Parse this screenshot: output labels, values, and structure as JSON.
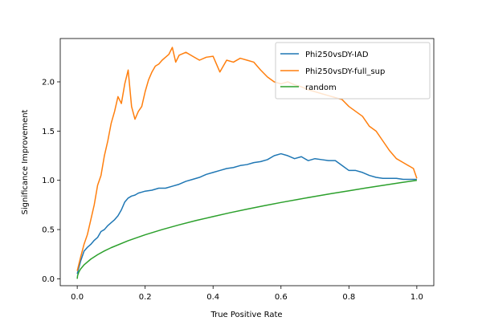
{
  "chart_data": {
    "type": "line",
    "title": "",
    "xlabel": "True Positive Rate",
    "ylabel": "Significance Improvement",
    "xlim": [
      -0.05,
      1.05
    ],
    "ylim": [
      -0.07,
      2.44
    ],
    "xticks": [
      0.0,
      0.2,
      0.4,
      0.6,
      0.8,
      1.0
    ],
    "xtick_labels": [
      "0.0",
      "0.2",
      "0.4",
      "0.6",
      "0.8",
      "1.0"
    ],
    "yticks": [
      0.0,
      0.5,
      1.0,
      1.5,
      2.0
    ],
    "ytick_labels": [
      "0.0",
      "0.5",
      "1.0",
      "1.5",
      "2.0"
    ],
    "grid": false,
    "legend_position": "top-right",
    "series": [
      {
        "name": "Phi250vsDY-IAD",
        "color": "#1f77b4",
        "points": [
          [
            0.0,
            0.05
          ],
          [
            0.01,
            0.18
          ],
          [
            0.02,
            0.28
          ],
          [
            0.03,
            0.32
          ],
          [
            0.04,
            0.35
          ],
          [
            0.05,
            0.39
          ],
          [
            0.06,
            0.42
          ],
          [
            0.07,
            0.48
          ],
          [
            0.08,
            0.5
          ],
          [
            0.09,
            0.54
          ],
          [
            0.1,
            0.57
          ],
          [
            0.11,
            0.6
          ],
          [
            0.12,
            0.64
          ],
          [
            0.13,
            0.7
          ],
          [
            0.14,
            0.78
          ],
          [
            0.15,
            0.82
          ],
          [
            0.16,
            0.84
          ],
          [
            0.17,
            0.85
          ],
          [
            0.18,
            0.87
          ],
          [
            0.19,
            0.88
          ],
          [
            0.2,
            0.89
          ],
          [
            0.22,
            0.9
          ],
          [
            0.24,
            0.92
          ],
          [
            0.26,
            0.92
          ],
          [
            0.28,
            0.94
          ],
          [
            0.3,
            0.96
          ],
          [
            0.32,
            0.99
          ],
          [
            0.34,
            1.01
          ],
          [
            0.36,
            1.03
          ],
          [
            0.38,
            1.06
          ],
          [
            0.4,
            1.08
          ],
          [
            0.42,
            1.1
          ],
          [
            0.44,
            1.12
          ],
          [
            0.46,
            1.13
          ],
          [
            0.48,
            1.15
          ],
          [
            0.5,
            1.16
          ],
          [
            0.52,
            1.18
          ],
          [
            0.54,
            1.19
          ],
          [
            0.56,
            1.21
          ],
          [
            0.58,
            1.25
          ],
          [
            0.6,
            1.27
          ],
          [
            0.62,
            1.25
          ],
          [
            0.64,
            1.22
          ],
          [
            0.66,
            1.24
          ],
          [
            0.68,
            1.2
          ],
          [
            0.7,
            1.22
          ],
          [
            0.72,
            1.21
          ],
          [
            0.74,
            1.2
          ],
          [
            0.76,
            1.2
          ],
          [
            0.78,
            1.15
          ],
          [
            0.8,
            1.1
          ],
          [
            0.82,
            1.1
          ],
          [
            0.84,
            1.08
          ],
          [
            0.86,
            1.05
          ],
          [
            0.88,
            1.03
          ],
          [
            0.9,
            1.02
          ],
          [
            0.92,
            1.02
          ],
          [
            0.94,
            1.02
          ],
          [
            0.96,
            1.01
          ],
          [
            0.98,
            1.01
          ],
          [
            1.0,
            1.01
          ]
        ]
      },
      {
        "name": "Phi250vsDY-full_sup",
        "color": "#ff7f0e",
        "points": [
          [
            0.0,
            0.08
          ],
          [
            0.01,
            0.22
          ],
          [
            0.02,
            0.35
          ],
          [
            0.03,
            0.45
          ],
          [
            0.04,
            0.6
          ],
          [
            0.05,
            0.75
          ],
          [
            0.06,
            0.95
          ],
          [
            0.07,
            1.05
          ],
          [
            0.08,
            1.25
          ],
          [
            0.09,
            1.4
          ],
          [
            0.1,
            1.58
          ],
          [
            0.11,
            1.7
          ],
          [
            0.12,
            1.85
          ],
          [
            0.13,
            1.78
          ],
          [
            0.14,
            1.98
          ],
          [
            0.15,
            2.12
          ],
          [
            0.16,
            1.75
          ],
          [
            0.17,
            1.62
          ],
          [
            0.18,
            1.7
          ],
          [
            0.19,
            1.75
          ],
          [
            0.2,
            1.9
          ],
          [
            0.21,
            2.02
          ],
          [
            0.22,
            2.1
          ],
          [
            0.23,
            2.16
          ],
          [
            0.24,
            2.18
          ],
          [
            0.25,
            2.22
          ],
          [
            0.26,
            2.25
          ],
          [
            0.27,
            2.28
          ],
          [
            0.28,
            2.35
          ],
          [
            0.29,
            2.2
          ],
          [
            0.3,
            2.27
          ],
          [
            0.32,
            2.3
          ],
          [
            0.34,
            2.26
          ],
          [
            0.36,
            2.22
          ],
          [
            0.38,
            2.25
          ],
          [
            0.4,
            2.26
          ],
          [
            0.42,
            2.1
          ],
          [
            0.44,
            2.22
          ],
          [
            0.46,
            2.2
          ],
          [
            0.48,
            2.24
          ],
          [
            0.5,
            2.22
          ],
          [
            0.52,
            2.2
          ],
          [
            0.54,
            2.12
          ],
          [
            0.56,
            2.05
          ],
          [
            0.58,
            2.0
          ],
          [
            0.6,
            1.98
          ],
          [
            0.62,
            2.0
          ],
          [
            0.64,
            1.97
          ],
          [
            0.66,
            1.95
          ],
          [
            0.68,
            1.92
          ],
          [
            0.7,
            1.9
          ],
          [
            0.72,
            1.88
          ],
          [
            0.74,
            1.86
          ],
          [
            0.76,
            1.84
          ],
          [
            0.78,
            1.82
          ],
          [
            0.8,
            1.75
          ],
          [
            0.82,
            1.7
          ],
          [
            0.84,
            1.65
          ],
          [
            0.86,
            1.55
          ],
          [
            0.88,
            1.5
          ],
          [
            0.9,
            1.4
          ],
          [
            0.92,
            1.3
          ],
          [
            0.94,
            1.22
          ],
          [
            0.96,
            1.18
          ],
          [
            0.98,
            1.14
          ],
          [
            0.99,
            1.12
          ],
          [
            1.0,
            1.02
          ]
        ]
      },
      {
        "name": "random",
        "color": "#2ca02c",
        "points": [
          [
            0.0,
            0.0
          ],
          [
            0.001,
            0.032
          ],
          [
            0.005,
            0.071
          ],
          [
            0.01,
            0.1
          ],
          [
            0.02,
            0.141
          ],
          [
            0.04,
            0.2
          ],
          [
            0.06,
            0.245
          ],
          [
            0.08,
            0.283
          ],
          [
            0.1,
            0.316
          ],
          [
            0.15,
            0.387
          ],
          [
            0.2,
            0.447
          ],
          [
            0.25,
            0.5
          ],
          [
            0.3,
            0.548
          ],
          [
            0.35,
            0.592
          ],
          [
            0.4,
            0.632
          ],
          [
            0.45,
            0.671
          ],
          [
            0.5,
            0.707
          ],
          [
            0.55,
            0.742
          ],
          [
            0.6,
            0.775
          ],
          [
            0.65,
            0.806
          ],
          [
            0.7,
            0.837
          ],
          [
            0.75,
            0.866
          ],
          [
            0.8,
            0.894
          ],
          [
            0.85,
            0.922
          ],
          [
            0.9,
            0.949
          ],
          [
            0.95,
            0.975
          ],
          [
            1.0,
            1.0
          ]
        ]
      }
    ]
  }
}
